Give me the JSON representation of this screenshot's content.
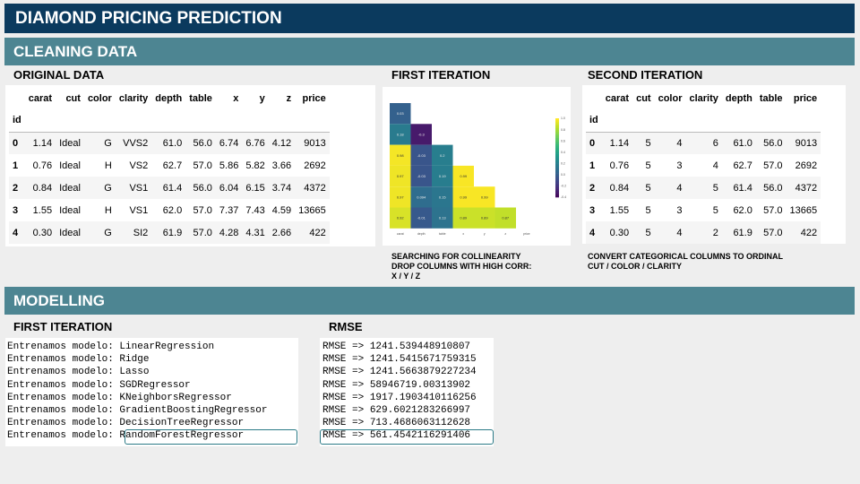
{
  "title": "DIAMOND PRICING PREDICTION",
  "sections": {
    "cleaning": "CLEANING DATA",
    "modelling": "MODELLING"
  },
  "cleaning": {
    "original": {
      "label": "ORIGINAL DATA",
      "columns": [
        "carat",
        "cut",
        "color",
        "clarity",
        "depth",
        "table",
        "x",
        "y",
        "z",
        "price"
      ],
      "index_name": "id",
      "rows": [
        [
          "0",
          "1.14",
          "Ideal",
          "G",
          "VVS2",
          "61.0",
          "56.0",
          "6.74",
          "6.76",
          "4.12",
          "9013"
        ],
        [
          "1",
          "0.76",
          "Ideal",
          "H",
          "VS2",
          "62.7",
          "57.0",
          "5.86",
          "5.82",
          "3.66",
          "2692"
        ],
        [
          "2",
          "0.84",
          "Ideal",
          "G",
          "VS1",
          "61.4",
          "56.0",
          "6.04",
          "6.15",
          "3.74",
          "4372"
        ],
        [
          "3",
          "1.55",
          "Ideal",
          "H",
          "VS1",
          "62.0",
          "57.0",
          "7.37",
          "7.43",
          "4.59",
          "13665"
        ],
        [
          "4",
          "0.30",
          "Ideal",
          "G",
          "SI2",
          "61.9",
          "57.0",
          "4.28",
          "4.31",
          "2.66",
          "422"
        ]
      ]
    },
    "first_iteration": {
      "label": "FIRST ITERATION",
      "caption_lines": [
        "SEARCHING FOR COLLINEARITY",
        "DROP COLUMNS WITH HIGH CORR:",
        "X / Y / Z"
      ]
    },
    "second_iteration": {
      "label": "SECOND ITERATION",
      "columns": [
        "carat",
        "cut",
        "color",
        "clarity",
        "depth",
        "table",
        "price"
      ],
      "index_name": "id",
      "rows": [
        [
          "0",
          "1.14",
          "5",
          "4",
          "6",
          "61.0",
          "56.0",
          "9013"
        ],
        [
          "1",
          "0.76",
          "5",
          "3",
          "4",
          "62.7",
          "57.0",
          "2692"
        ],
        [
          "2",
          "0.84",
          "5",
          "4",
          "5",
          "61.4",
          "56.0",
          "4372"
        ],
        [
          "3",
          "1.55",
          "5",
          "3",
          "5",
          "62.0",
          "57.0",
          "13665"
        ],
        [
          "4",
          "0.30",
          "5",
          "4",
          "2",
          "61.9",
          "57.0",
          "422"
        ]
      ],
      "caption_lines": [
        "CONVERT CATEGORICAL COLUMNS TO ORDINAL",
        "CUT / COLOR / CLARITY"
      ]
    }
  },
  "modelling": {
    "first_iteration_label": "FIRST ITERATION",
    "rmse_label": "RMSE",
    "train_prefix": "Entrenamos modelo: ",
    "models": [
      "LinearRegression",
      "Ridge",
      "Lasso",
      "SGDRegressor",
      "KNeighborsRegressor",
      "GradientBoostingRegressor",
      "DecisionTreeRegressor",
      "RandomForestRegressor"
    ],
    "rmse_prefix": "RMSE => ",
    "rmse_values": [
      "1241.539448910807",
      "1241.5415671759315",
      "1241.5663879227234",
      "58946719.00313902",
      "1917.1903410116256",
      "629.6021283266997",
      "713.4686063112628",
      "561.4542116291406"
    ],
    "highlight": "RandomForestRegressor"
  },
  "chart_data": {
    "type": "heatmap",
    "title": "",
    "colormap": "viridis",
    "mask": "upper-triangle",
    "colorbar_ticks": [
      "1.0",
      "0.8",
      "0.6",
      "0.4",
      "0.2",
      "0.0",
      "-0.2",
      "-0.4"
    ],
    "x_tick_labels": [
      "carat",
      "depth",
      "table",
      "x",
      "y",
      "z",
      "price"
    ],
    "cells": [
      [
        0.03
      ],
      [
        0.18,
        -0.3
      ],
      [
        0.98,
        -0.03,
        0.2
      ],
      [
        0.97,
        -0.03,
        0.19,
        0.99
      ],
      [
        0.97,
        0.094,
        0.15,
        0.99,
        0.99
      ],
      [
        0.92,
        -0.01,
        0.13,
        0.89,
        0.89,
        0.87
      ]
    ],
    "range": [
      -0.4,
      1.0
    ]
  },
  "colors": {
    "title_bar": "#0b3a5e",
    "section_bar": "#4d8592",
    "highlight_border": "#2b7a87"
  }
}
